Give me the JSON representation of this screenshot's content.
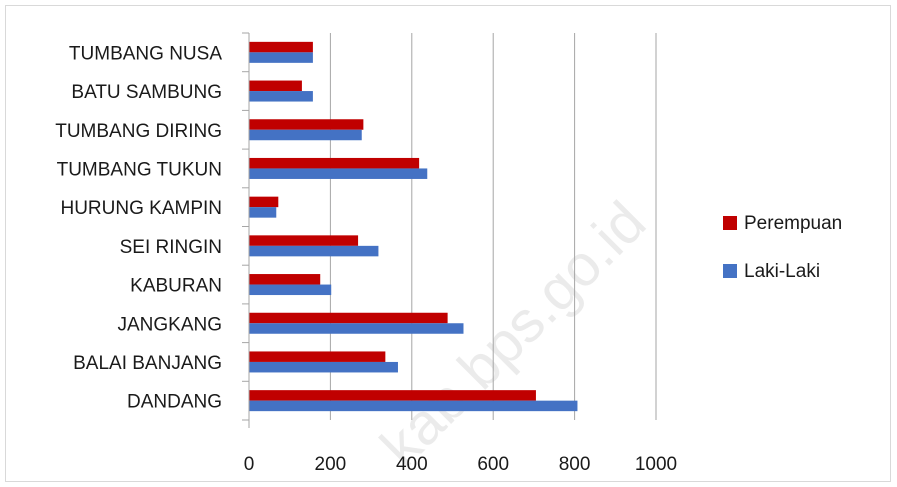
{
  "chart_data": {
    "type": "bar",
    "orientation": "horizontal",
    "categories": [
      "DANDANG",
      "BALAI BANJANG",
      "JANGKANG",
      "KABURAN",
      "SEI RINGIN",
      "HURUNG KAMPIN",
      "TUMBANG TUKUN",
      "TUMBANG DIRING",
      "BATU SAMBUNG",
      "TUMBANG NUSA"
    ],
    "series": [
      {
        "name": "Perempuan",
        "color": "#c00000",
        "values": [
          705,
          335,
          488,
          175,
          268,
          72,
          418,
          281,
          130,
          157
        ]
      },
      {
        "name": "Laki-Laki",
        "color": "#4472c4",
        "values": [
          807,
          366,
          527,
          202,
          318,
          67,
          438,
          277,
          157,
          157
        ]
      }
    ],
    "x_ticks": [
      0,
      200,
      400,
      600,
      800,
      1000
    ],
    "xlim": [
      0,
      1000
    ],
    "grid": true,
    "legend_position": "right",
    "title": "",
    "xlabel": "",
    "ylabel": "",
    "watermark": "kab.bps.go.id"
  }
}
